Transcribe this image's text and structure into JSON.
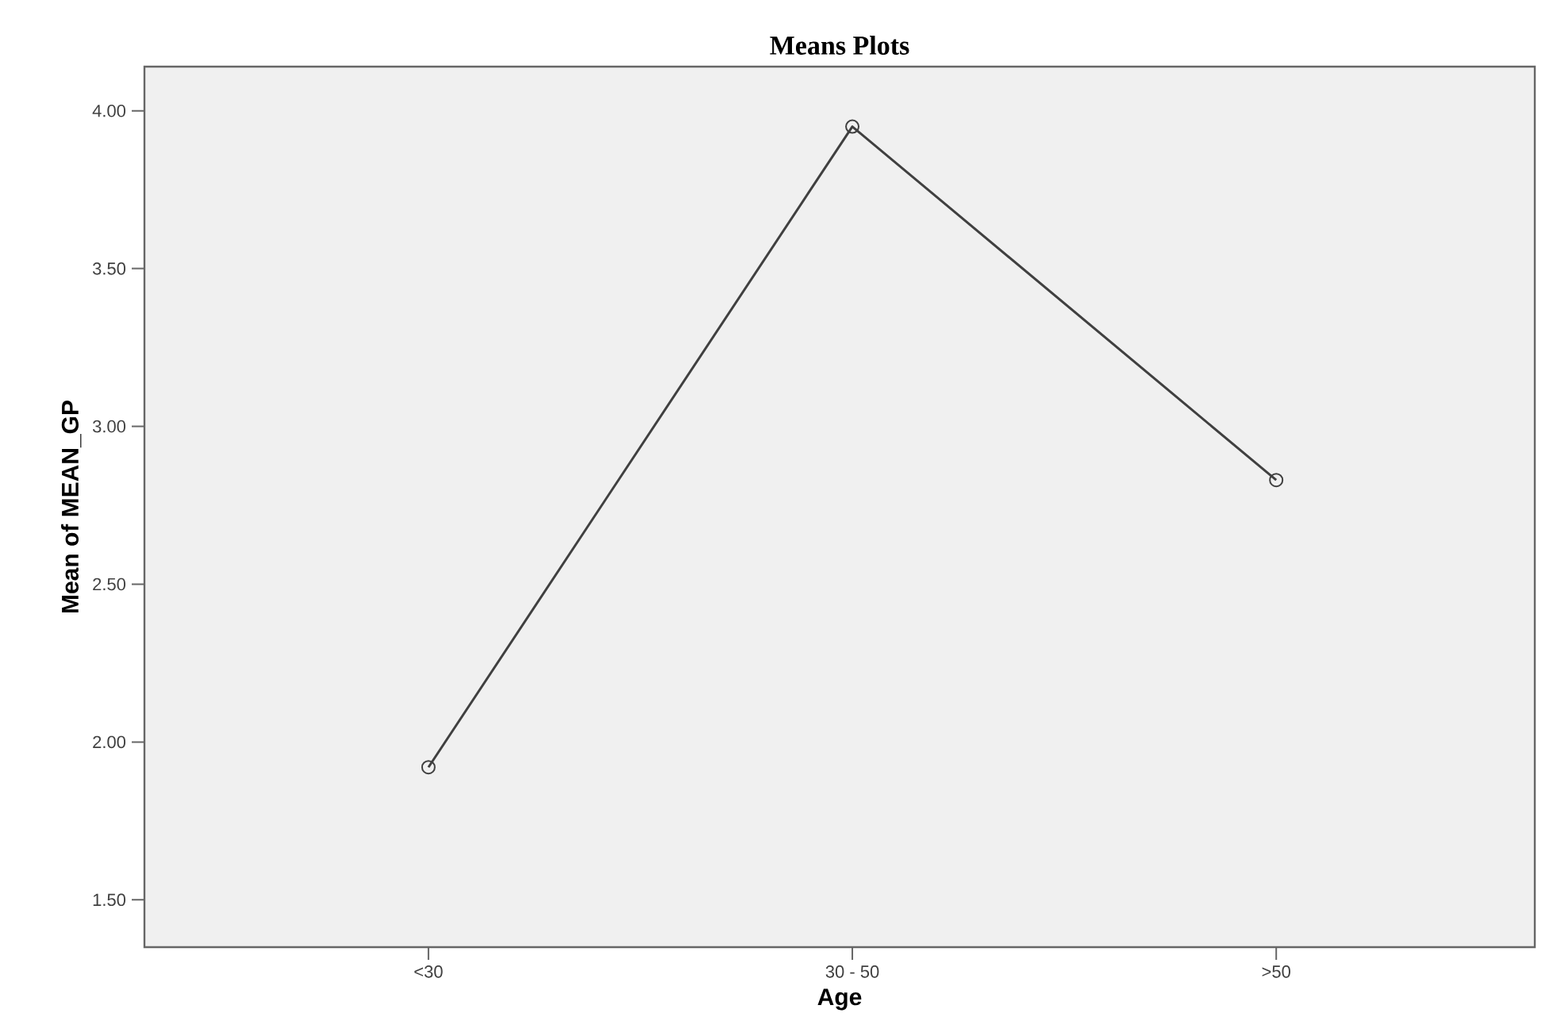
{
  "chart_data": {
    "type": "line",
    "title": "Means Plots",
    "xlabel": "Age",
    "ylabel": "Mean of MEAN_GP",
    "categories": [
      "<30",
      "30 - 50",
      ">50"
    ],
    "series": [
      {
        "color": "#404040",
        "values": [
          1.92,
          3.95,
          2.83
        ]
      }
    ],
    "ylim": [
      1.35,
      4.14
    ],
    "yticks": [
      {
        "value": 1.5,
        "label": "1.50"
      },
      {
        "value": 2.0,
        "label": "2.00"
      },
      {
        "value": 2.5,
        "label": "2.50"
      },
      {
        "value": 3.0,
        "label": "3.00"
      },
      {
        "value": 3.5,
        "label": "3.50"
      },
      {
        "value": 4.0,
        "label": "4.00"
      }
    ],
    "grid": false,
    "marker": "circle",
    "line_style": "solid"
  }
}
